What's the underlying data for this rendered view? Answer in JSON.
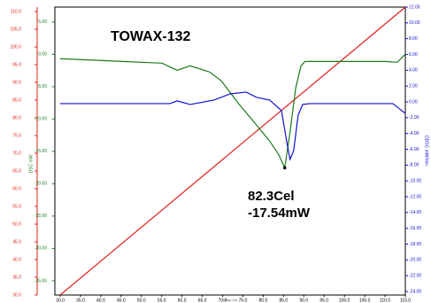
{
  "chart_data": {
    "type": "line",
    "annotations": [
      "TOWAX-132",
      "82.3Cel",
      "-17.54mW"
    ],
    "xlabel": "Temp Cel",
    "y2label": "DSC mW",
    "y3label": "DDSC mW/min",
    "xlim": [
      30,
      115
    ],
    "xticks": [
      {
        "value": 30,
        "label": "30.0"
      },
      {
        "value": 35,
        "label": "35.0"
      },
      {
        "value": 40,
        "label": "40.0"
      },
      {
        "value": 45,
        "label": "45.0"
      },
      {
        "value": 50,
        "label": "50.0"
      },
      {
        "value": 55,
        "label": "55.0"
      },
      {
        "value": 60,
        "label": "60.0"
      },
      {
        "value": 65,
        "label": "65.0"
      },
      {
        "value": 70,
        "label": "70.0"
      },
      {
        "value": 75,
        "label": "75.0"
      },
      {
        "value": 80,
        "label": "80.0"
      },
      {
        "value": 85,
        "label": "85.0"
      },
      {
        "value": 90,
        "label": "90.0"
      },
      {
        "value": 95,
        "label": "95.0"
      },
      {
        "value": 100,
        "label": "100.0"
      },
      {
        "value": 105,
        "label": "105.0"
      },
      {
        "value": 110,
        "label": "110.0"
      },
      {
        "value": 115,
        "label": "115.0"
      }
    ],
    "ylim": [
      30,
      111.25
    ],
    "ycolor": "#e0201a",
    "yticks": [
      {
        "value": 30,
        "label": "30.0"
      },
      {
        "value": 35,
        "label": "35.0"
      },
      {
        "value": 40,
        "label": "40.0"
      },
      {
        "value": 45,
        "label": "45.0"
      },
      {
        "value": 50,
        "label": "50.0"
      },
      {
        "value": 55,
        "label": "55.0"
      },
      {
        "value": 60,
        "label": "60.0"
      },
      {
        "value": 65,
        "label": "65.0"
      },
      {
        "value": 70,
        "label": "70.0"
      },
      {
        "value": 75,
        "label": "75.0"
      },
      {
        "value": 80,
        "label": "80.0"
      },
      {
        "value": 85,
        "label": "85.0"
      },
      {
        "value": 90,
        "label": "90.0"
      },
      {
        "value": 95,
        "label": "95.0"
      },
      {
        "value": 100,
        "label": "100.0"
      },
      {
        "value": 105,
        "label": "105.0"
      },
      {
        "value": 110,
        "label": "110.0"
      }
    ],
    "y2lim": [
      -37.2,
      7.3
    ],
    "y2color": "#1a7a1a",
    "y2ticks": [
      {
        "value": 5,
        "label": "5.00"
      },
      {
        "value": 0,
        "label": "-0.00"
      },
      {
        "value": -5,
        "label": "-5.00"
      },
      {
        "value": -10,
        "label": "-10.00"
      },
      {
        "value": -15,
        "label": "-15.00"
      },
      {
        "value": -20,
        "label": "-20.00"
      },
      {
        "value": -25,
        "label": "-25.00"
      },
      {
        "value": -30,
        "label": "-30.00"
      },
      {
        "value": -35,
        "label": "-35.00"
      }
    ],
    "y3lim": [
      -24.45,
      12
    ],
    "y3color": "#1010d0",
    "y3ticks": [
      {
        "value": 12,
        "label": "12.00"
      },
      {
        "value": 10,
        "label": "10.00"
      },
      {
        "value": 8,
        "label": "8.00"
      },
      {
        "value": 6,
        "label": "6.00"
      },
      {
        "value": 4,
        "label": "4.00"
      },
      {
        "value": 2,
        "label": "2.00"
      },
      {
        "value": 0,
        "label": "0.00"
      },
      {
        "value": -2,
        "label": "-2.00"
      },
      {
        "value": -4,
        "label": "-4.00"
      },
      {
        "value": -6,
        "label": "-6.00"
      },
      {
        "value": -8,
        "label": "-8.00"
      },
      {
        "value": -10,
        "label": "-10.00"
      },
      {
        "value": -12,
        "label": "-12.00"
      },
      {
        "value": -14,
        "label": "-14.00"
      },
      {
        "value": -16,
        "label": "-16.00"
      },
      {
        "value": -18,
        "label": "-18.00"
      },
      {
        "value": -20,
        "label": "-20.00"
      },
      {
        "value": -22,
        "label": "-22.00"
      },
      {
        "value": -24,
        "label": "-24.00"
      }
    ],
    "series": [
      {
        "color": "#e0201a",
        "axis": "y",
        "x": [
          30,
          115
        ],
        "values": [
          30,
          111.25
        ]
      },
      {
        "color": "#1a7a1a",
        "axis": "y2",
        "x": [
          30,
          55.1,
          58.8,
          62.0,
          66.8,
          69.7,
          74.0,
          78.4,
          81.6,
          83.8,
          85.3,
          86.6,
          88.0,
          89.3,
          90.3,
          100.2,
          110.0,
          113.0,
          115
        ],
        "values": [
          -0.68,
          -1.37,
          -2.47,
          -1.78,
          -2.74,
          -4.11,
          -7.67,
          -10.96,
          -13.42,
          -15.48,
          -17.54,
          -12.05,
          -5.21,
          -1.78,
          -1.1,
          -1.1,
          -1.1,
          -1.23,
          0
        ]
      },
      {
        "color": "#1010d0",
        "axis": "y3",
        "x": [
          30,
          57.0,
          58.8,
          62.0,
          67.9,
          71.8,
          75.8,
          78.4,
          81.6,
          84.5,
          85.8,
          86.6,
          87.5,
          88.6,
          89.7,
          91.4,
          111.9,
          115
        ],
        "values": [
          -0.22,
          -0.22,
          0.12,
          -0.33,
          0.23,
          1.01,
          1.24,
          0.57,
          0.23,
          -1.12,
          -5.05,
          -7.28,
          -6.16,
          -1.68,
          -0.33,
          -0.22,
          -0.22,
          -1.45
        ]
      }
    ],
    "peak": {
      "x": 85.3,
      "value": -17.54
    }
  }
}
